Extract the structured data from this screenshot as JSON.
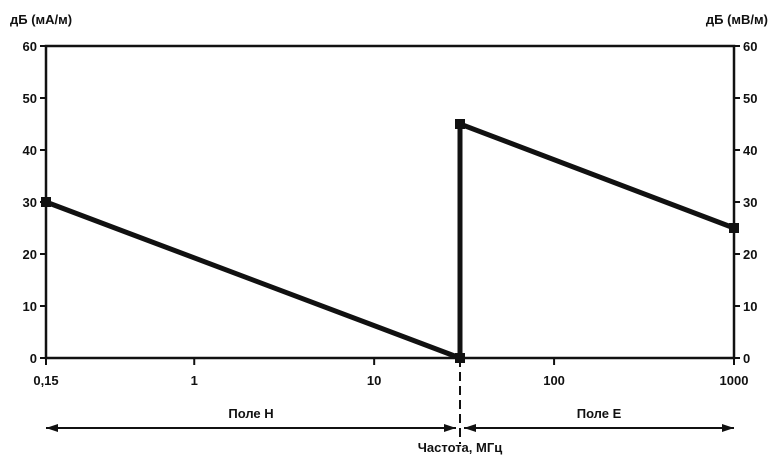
{
  "chart_data": {
    "type": "line",
    "title": "",
    "xscale": "log",
    "xlim": [
      0.15,
      1000
    ],
    "xticks": [
      {
        "value": 0.15,
        "label": "0,15"
      },
      {
        "value": 1,
        "label": "1"
      },
      {
        "value": 10,
        "label": "10"
      },
      {
        "value": 100,
        "label": "100"
      },
      {
        "value": 1000,
        "label": "1000"
      }
    ],
    "xlabel": "Частота, МГц",
    "ylabel_left": "дБ (мА/м)",
    "ylabel_right": "дБ (мВ/м)",
    "ylim": [
      0,
      60
    ],
    "yticks": [
      0,
      10,
      20,
      30,
      40,
      50,
      60
    ],
    "grid": false,
    "series": [
      {
        "x": [
          0.15,
          30
        ],
        "y": [
          30,
          0
        ]
      },
      {
        "x": [
          30,
          30
        ],
        "y": [
          0,
          45
        ]
      },
      {
        "x": [
          30,
          1000
        ],
        "y": [
          45,
          25
        ]
      }
    ],
    "markers": [
      {
        "x": 0.15,
        "y": 30
      },
      {
        "x": 30,
        "y": 0
      },
      {
        "x": 30,
        "y": 45
      },
      {
        "x": 1000,
        "y": 25
      }
    ],
    "divider_x": 30,
    "regions": [
      {
        "label": "Поле Н",
        "from": 0.15,
        "to": 30
      },
      {
        "label": "Поле Е",
        "from": 30,
        "to": 1000
      }
    ]
  }
}
